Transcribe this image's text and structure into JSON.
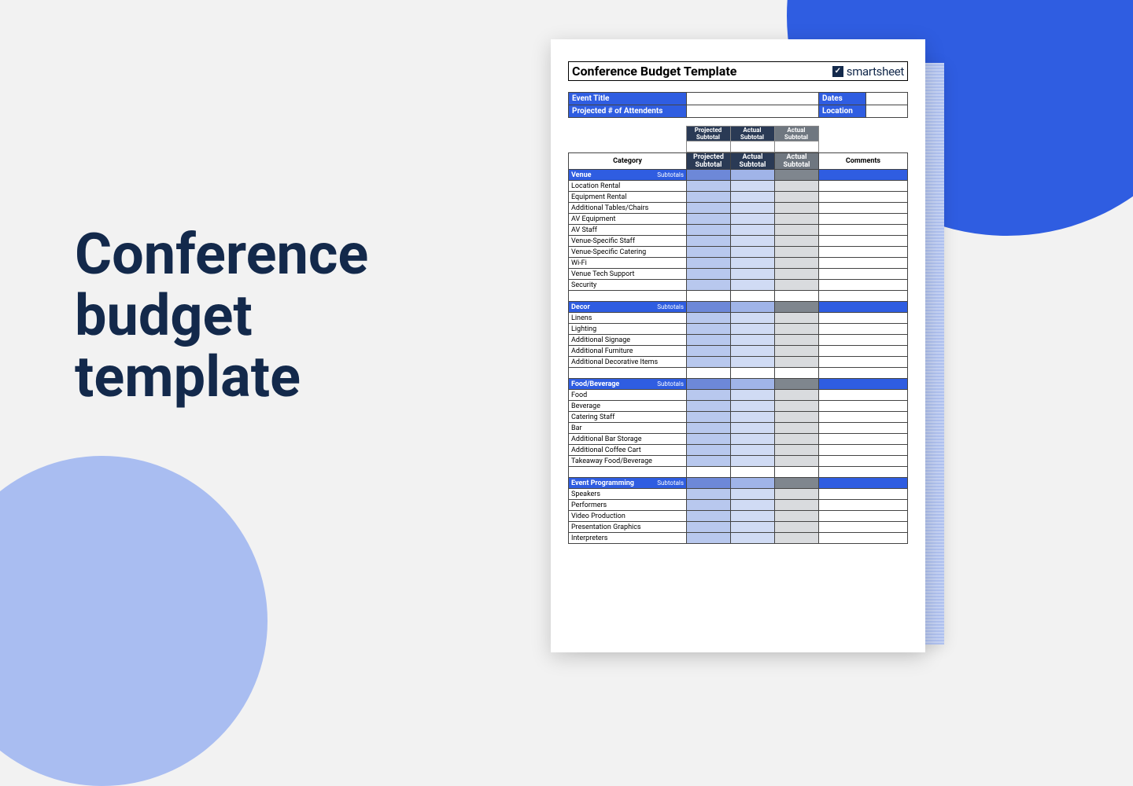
{
  "headline": "Conference budget template",
  "doc_title": "Conference Budget Template",
  "brand": "smartsheet",
  "meta": {
    "event_title_label": "Event Title",
    "attendees_label": "Projected # of Attendents",
    "dates_label": "Dates",
    "location_label": "Location"
  },
  "column_headers": {
    "category": "Category",
    "projected": "Projected Subtotal",
    "actual1": "Actual Subtotal",
    "actual2": "Actual Subtotal",
    "comments": "Comments"
  },
  "subtotals_label": "Subtotals",
  "sections": [
    {
      "name": "Venue",
      "items": [
        "Location Rental",
        "Equipment Rental",
        "Additional Tables/Chairs",
        "AV Equipment",
        "AV Staff",
        "Venue-Specific Staff",
        "Venue-Specific Catering",
        "Wi-Fi",
        "Venue Tech Support",
        "Security"
      ]
    },
    {
      "name": "Decor",
      "items": [
        "Linens",
        "Lighting",
        "Additional Signage",
        "Additional Furniture",
        "Additional Decorative Items"
      ]
    },
    {
      "name": "Food/Beverage",
      "items": [
        "Food",
        "Beverage",
        "Catering Staff",
        "Bar",
        "Additional Bar Storage",
        "Additional Coffee Cart",
        "Takeaway Food/Beverage"
      ]
    },
    {
      "name": "Event Programming",
      "items": [
        "Speakers",
        "Performers",
        "Video Production",
        "Presentation Graphics",
        "Interpreters"
      ]
    }
  ],
  "colors": {
    "background": "#f2f2f2",
    "headline_text": "#13294b",
    "accent_blue": "#2f5de1",
    "accent_light_blue": "#a9bdf1",
    "header_dark": "#2a3a55",
    "header_grey": "#6f7780",
    "cell_blue_mid": "#6d88d8",
    "cell_blue_light": "#b8c8ee",
    "cell_blue_lighter": "#d0dbf4",
    "cell_grey_light": "#d9dbde"
  }
}
